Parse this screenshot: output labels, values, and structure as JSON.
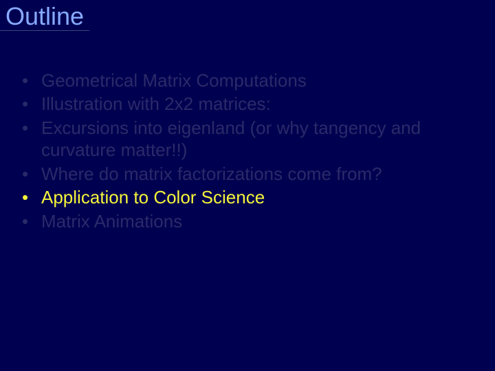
{
  "slide": {
    "title": "Outline",
    "title_color": "#88aaff",
    "title_fontsize": 36,
    "background_color": "#000050",
    "bullet_fontsize": 26,
    "bullets": [
      {
        "text": "Geometrical Matrix Computations",
        "emphasis": false
      },
      {
        "text": "Illustration with 2x2 matrices:",
        "emphasis": false
      },
      {
        "text": "Excursions into eigenland (or why tangency and curvature matter!!)",
        "emphasis": false
      },
      {
        "text": "Where do matrix factorizations come from?",
        "emphasis": false
      },
      {
        "text": "Application to Color Science",
        "emphasis": true
      },
      {
        "text": "Matrix Animations",
        "emphasis": false
      }
    ],
    "dim_color": "#2a2a6a",
    "bright_color": "#f5f53a"
  }
}
